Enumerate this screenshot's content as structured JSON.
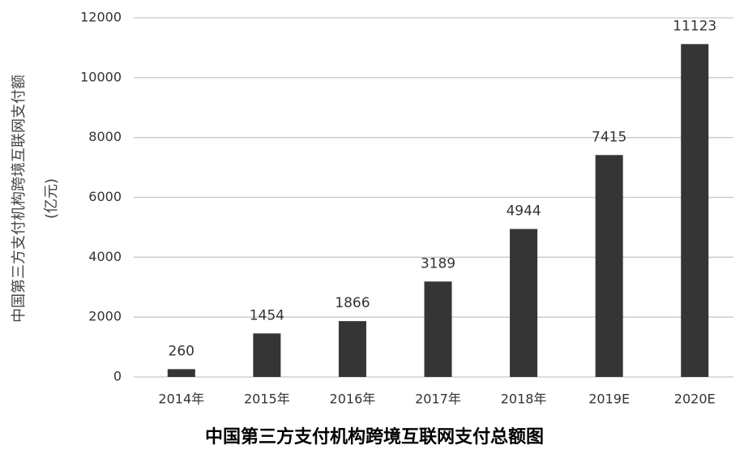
{
  "chart_data": {
    "type": "bar",
    "title": "中国第三方支付机构跨境互联网支付总额图",
    "y_label": [
      "中国第三方支付机构跨境互联网支付额",
      "(亿元)"
    ],
    "categories": [
      "2014年",
      "2015年",
      "2016年",
      "2017年",
      "2018年",
      "2019E",
      "2020E"
    ],
    "values": [
      260,
      1454,
      1866,
      3189,
      4944,
      7415,
      11123
    ],
    "color": "#353535",
    "ylim": [
      0,
      12000
    ],
    "yticks": [
      0,
      2000,
      4000,
      6000,
      8000,
      10000,
      12000
    ],
    "grid": true
  }
}
